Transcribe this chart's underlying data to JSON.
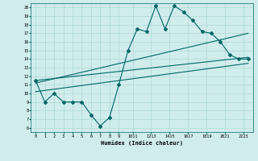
{
  "xlabel": "Humidex (Indice chaleur)",
  "xlim": [
    -0.5,
    23.5
  ],
  "ylim": [
    5.5,
    20.5
  ],
  "yticks": [
    6,
    7,
    8,
    9,
    10,
    11,
    12,
    13,
    14,
    15,
    16,
    17,
    18,
    19,
    20
  ],
  "xtick_positions": [
    0,
    1,
    2,
    3,
    4,
    5,
    6,
    7,
    8,
    9,
    10.5,
    12.5,
    14.5,
    16.5,
    18.5,
    20.5,
    22.5
  ],
  "xtick_labels": [
    "0",
    "1",
    "2",
    "3",
    "4",
    "5",
    "6",
    "7",
    "8",
    "9",
    "1011",
    "1213",
    "1415",
    "1617",
    "1819",
    "2021",
    "2223"
  ],
  "bg_color": "#d0ecec",
  "line_color": "#006666",
  "grid_color": "#b0d8d8",
  "main_x": [
    0,
    1,
    2,
    3,
    4,
    5,
    6,
    7,
    8,
    9,
    10,
    11,
    12,
    13,
    14,
    15,
    16,
    17,
    18,
    19,
    20,
    21,
    22,
    23
  ],
  "main_y": [
    11.5,
    9.0,
    10.0,
    9.0,
    9.0,
    9.0,
    7.5,
    6.2,
    7.2,
    11.0,
    15.0,
    17.5,
    17.2,
    20.2,
    17.5,
    20.2,
    19.5,
    18.5,
    17.2,
    17.0,
    16.0,
    14.5,
    14.0,
    14.0
  ],
  "trend1_x": [
    0,
    23
  ],
  "trend1_y": [
    11.5,
    14.2
  ],
  "trend2_x": [
    0,
    23
  ],
  "trend2_y": [
    11.2,
    17.0
  ],
  "trend3_x": [
    0,
    23
  ],
  "trend3_y": [
    10.2,
    13.5
  ]
}
